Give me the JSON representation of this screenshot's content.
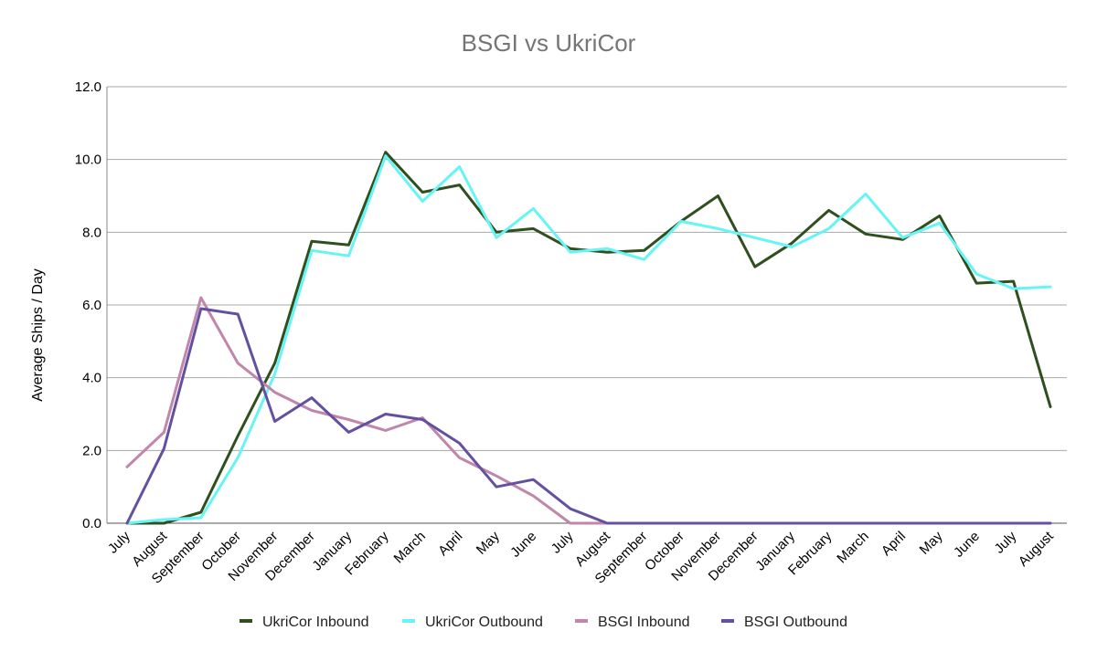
{
  "chart_data": {
    "type": "line",
    "title": "BSGI vs UkriCor",
    "xlabel": "",
    "ylabel": "Average Ships / Day",
    "ylim": [
      0,
      12
    ],
    "yticks": [
      "0.0",
      "2.0",
      "4.0",
      "6.0",
      "8.0",
      "10.0",
      "12.0"
    ],
    "grid": true,
    "legend_position": "bottom",
    "categories": [
      "July",
      "August",
      "September",
      "October",
      "November",
      "December",
      "January",
      "February",
      "March",
      "April",
      "May",
      "June",
      "July",
      "August",
      "September",
      "October",
      "November",
      "December",
      "January",
      "February",
      "March",
      "April",
      "May",
      "June",
      "July",
      "August"
    ],
    "series": [
      {
        "name": "UkriCor Inbound",
        "color": "#2f4f1f",
        "values": [
          0,
          0,
          0.3,
          2.4,
          4.4,
          7.75,
          7.65,
          10.2,
          9.1,
          9.3,
          8.0,
          8.1,
          7.55,
          7.45,
          7.5,
          8.3,
          9.0,
          7.05,
          7.7,
          8.6,
          7.95,
          7.8,
          8.45,
          6.6,
          6.65,
          3.2
        ]
      },
      {
        "name": "UkriCor Outbound",
        "color": "#66f4f4",
        "values": [
          0,
          0.1,
          0.15,
          1.8,
          4.1,
          7.5,
          7.35,
          10.1,
          8.85,
          9.8,
          7.85,
          8.65,
          7.45,
          7.55,
          7.25,
          8.3,
          8.1,
          7.85,
          7.6,
          8.1,
          9.05,
          7.85,
          8.25,
          6.85,
          6.45,
          6.5
        ]
      },
      {
        "name": "BSGI Inbound",
        "color": "#c086ac",
        "values": [
          1.55,
          2.5,
          6.2,
          4.4,
          3.6,
          3.1,
          2.85,
          2.55,
          2.9,
          1.8,
          1.3,
          0.75,
          0,
          0,
          0,
          0,
          0,
          0,
          0,
          0,
          0,
          0,
          0,
          0,
          0,
          0
        ]
      },
      {
        "name": "BSGI Outbound",
        "color": "#6450a0",
        "values": [
          0,
          2.05,
          5.9,
          5.75,
          2.8,
          3.45,
          2.5,
          3.0,
          2.85,
          2.2,
          1.0,
          1.2,
          0.4,
          0,
          0,
          0,
          0,
          0,
          0,
          0,
          0,
          0,
          0,
          0,
          0,
          0
        ]
      }
    ]
  }
}
